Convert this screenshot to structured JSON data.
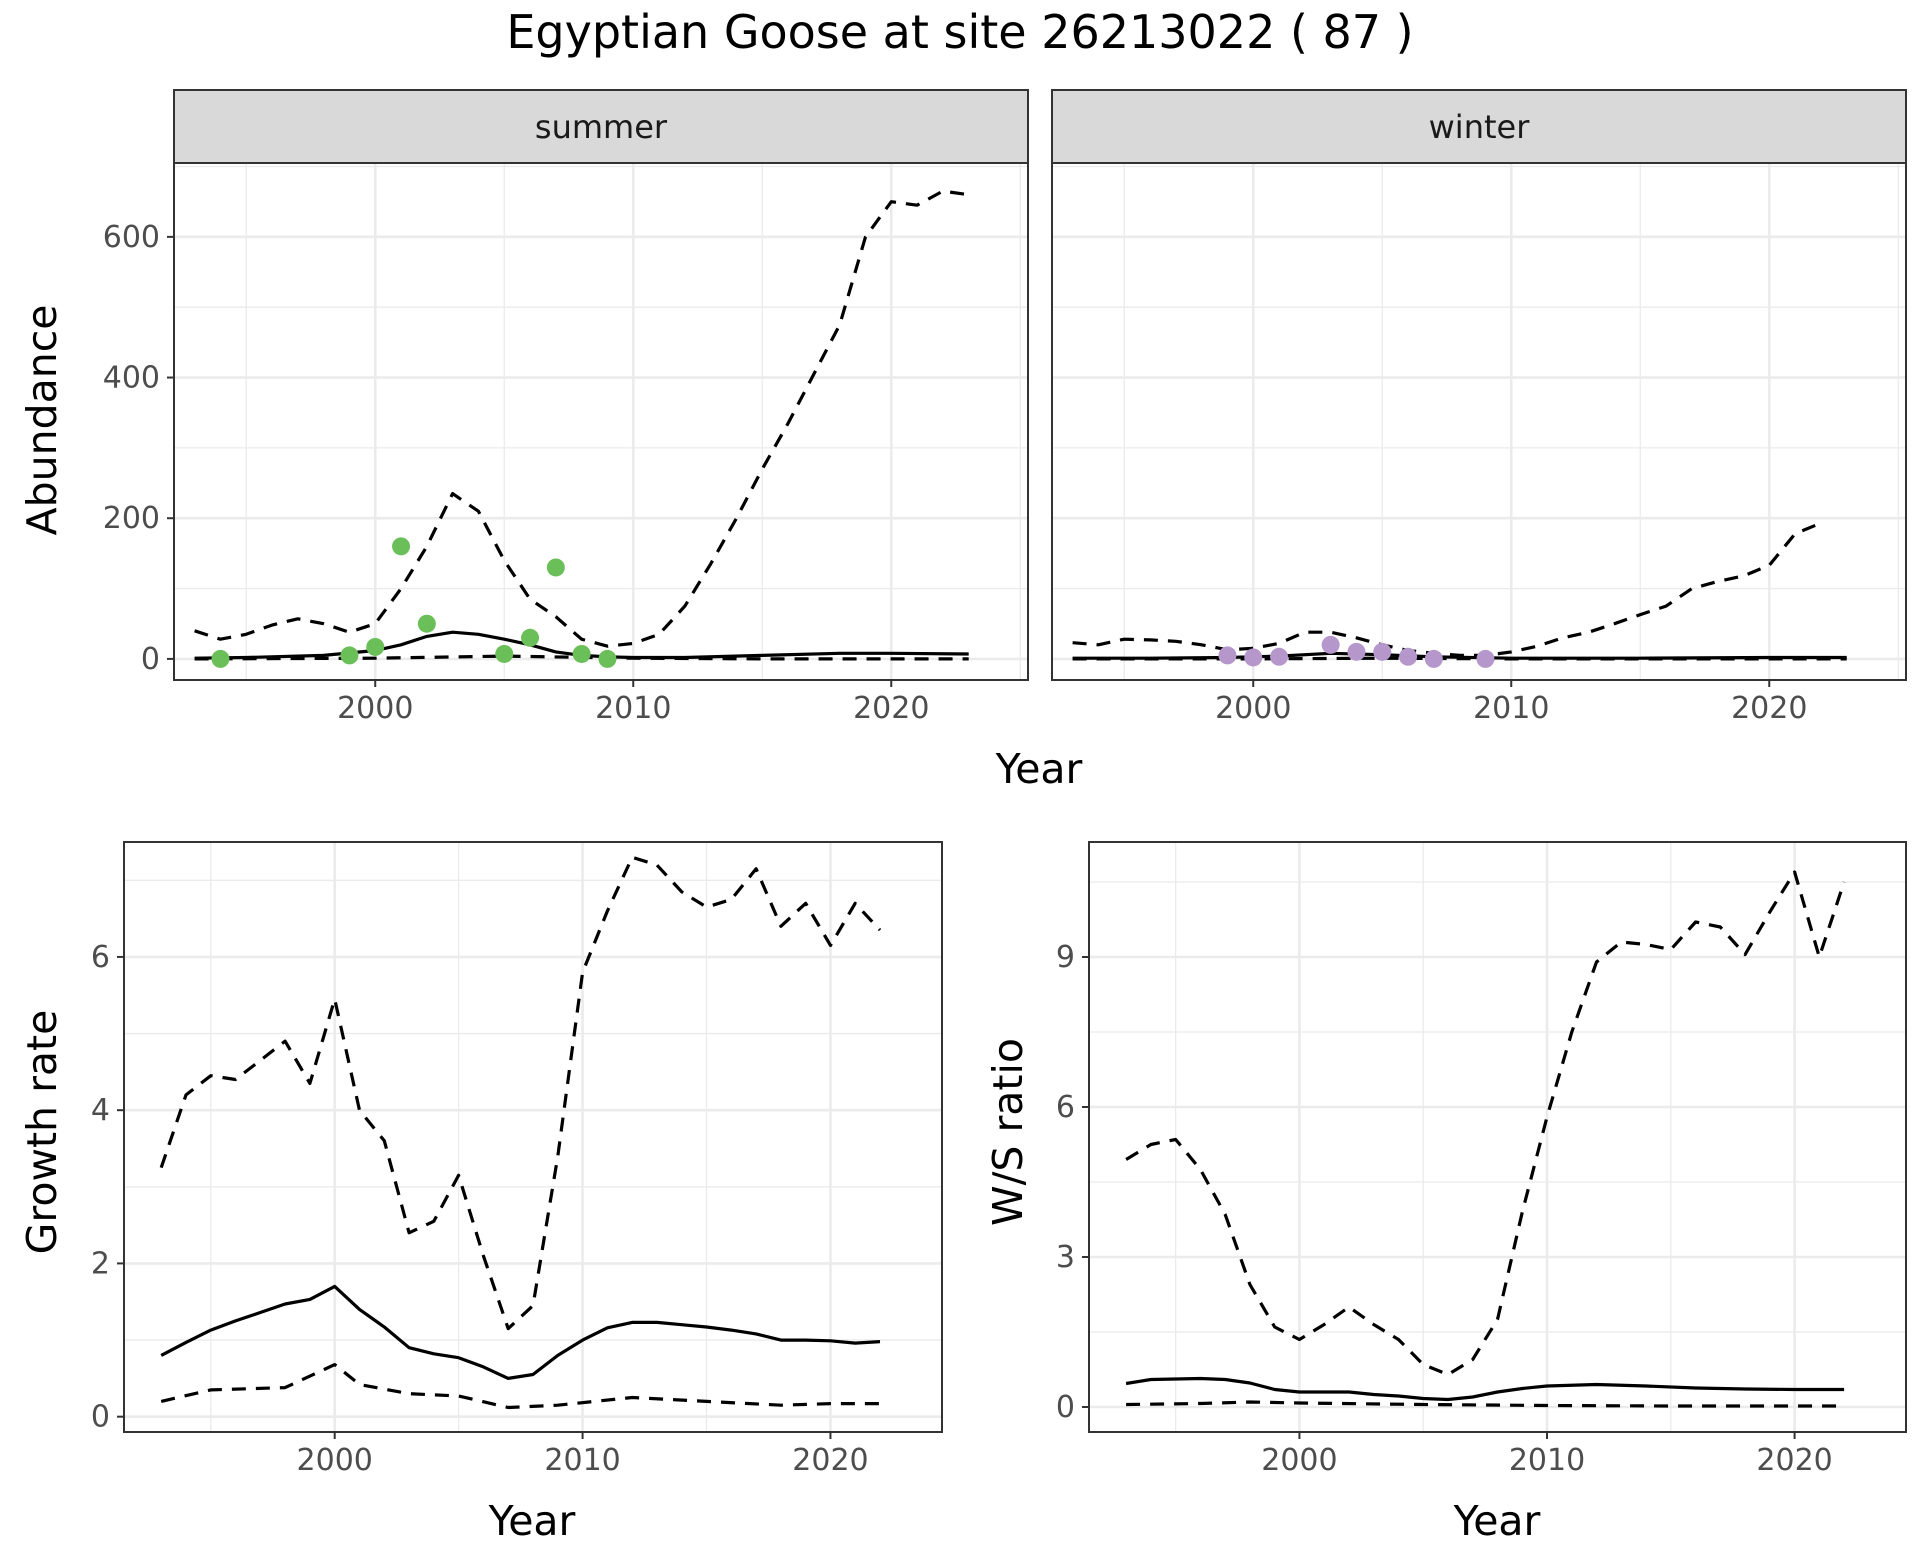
{
  "title": "Egyptian Goose at site 26213022 ( 87 )",
  "chart_data": [
    {
      "id": "abundance",
      "type": "line",
      "xlabel": "Year",
      "ylabel": "Abundance",
      "xlim": [
        1992.2,
        2025.3
      ],
      "ylim": [
        -30,
        705
      ],
      "x_ticks": [
        2000,
        2010,
        2020
      ],
      "y_ticks": [
        0,
        200,
        400,
        600
      ],
      "facets": [
        {
          "label": "summer",
          "point_color": "#6bbf59",
          "points": {
            "x": [
              1994,
              1999,
              2000,
              2001,
              2002,
              2005,
              2006,
              2007,
              2008,
              2009
            ],
            "y": [
              0,
              5,
              17,
              160,
              50,
              7,
              30,
              130,
              7,
              0
            ]
          },
          "series": [
            {
              "kind": "lower",
              "style": "dashed",
              "x": [
                1993,
                2000,
                2005,
                2010,
                2015,
                2020,
                2023
              ],
              "y": [
                0,
                1,
                4,
                1,
                0,
                0,
                0
              ]
            },
            {
              "kind": "estimate",
              "style": "solid",
              "x": [
                1993,
                1995,
                1998,
                2000,
                2001,
                2002,
                2003,
                2004,
                2005,
                2006,
                2007,
                2008,
                2009,
                2010,
                2012,
                2015,
                2018,
                2020,
                2023
              ],
              "y": [
                1,
                2,
                5,
                12,
                20,
                32,
                38,
                35,
                28,
                20,
                10,
                5,
                3,
                2,
                2,
                5,
                8,
                8,
                7
              ]
            },
            {
              "kind": "upper",
              "style": "dashed",
              "x": [
                1993,
                1994,
                1995,
                1996,
                1997,
                1998,
                1999,
                2000,
                2001,
                2002,
                2003,
                2004,
                2005,
                2006,
                2007,
                2008,
                2009,
                2010,
                2011,
                2012,
                2013,
                2014,
                2015,
                2016,
                2017,
                2018,
                2019,
                2020,
                2021,
                2022,
                2023
              ],
              "y": [
                40,
                28,
                35,
                48,
                57,
                50,
                38,
                50,
                100,
                160,
                235,
                210,
                140,
                85,
                60,
                28,
                18,
                22,
                35,
                75,
                135,
                200,
                270,
                335,
                405,
                475,
                600,
                650,
                645,
                665,
                660
              ]
            }
          ]
        },
        {
          "label": "winter",
          "point_color": "#b597cc",
          "points": {
            "x": [
              1999,
              2000,
              2001,
              2003,
              2004,
              2005,
              2006,
              2007,
              2009
            ],
            "y": [
              5,
              2,
              3,
              20,
              10,
              10,
              3,
              0,
              0
            ]
          },
          "series": [
            {
              "kind": "lower",
              "style": "dashed",
              "x": [
                1993,
                2000,
                2005,
                2010,
                2015,
                2020,
                2023
              ],
              "y": [
                0,
                0,
                1,
                0,
                0,
                0,
                0
              ]
            },
            {
              "kind": "estimate",
              "style": "solid",
              "x": [
                1993,
                1996,
                1999,
                2001,
                2003,
                2005,
                2007,
                2010,
                2015,
                2020,
                2023
              ],
              "y": [
                1,
                1,
                2,
                4,
                8,
                6,
                3,
                1,
                1,
                2,
                2
              ]
            },
            {
              "kind": "upper",
              "style": "dashed",
              "x": [
                1993,
                1994,
                1995,
                1996,
                1997,
                1998,
                1999,
                2000,
                2001,
                2002,
                2003,
                2004,
                2005,
                2006,
                2007,
                2008,
                2009,
                2010,
                2011,
                2012,
                2013,
                2014,
                2015,
                2016,
                2017,
                2018,
                2019,
                2020,
                2021,
                2022
              ],
              "y": [
                23,
                20,
                28,
                27,
                25,
                20,
                13,
                15,
                22,
                38,
                38,
                30,
                20,
                12,
                8,
                5,
                5,
                10,
                18,
                30,
                38,
                50,
                63,
                75,
                100,
                110,
                118,
                133,
                178,
                193
              ]
            }
          ]
        }
      ]
    },
    {
      "id": "growth",
      "type": "line",
      "xlabel": "Year",
      "ylabel": "Growth rate",
      "xlim": [
        1991.5,
        2024.5
      ],
      "ylim": [
        -0.2,
        7.5
      ],
      "x_ticks": [
        2000,
        2010,
        2020
      ],
      "y_ticks": [
        0,
        2,
        4,
        6
      ],
      "series": [
        {
          "kind": "upper",
          "style": "dashed",
          "x": [
            1993,
            1994,
            1995,
            1996,
            1997,
            1998,
            1999,
            2000,
            2001,
            2002,
            2003,
            2004,
            2005,
            2006,
            2007,
            2008,
            2009,
            2010,
            2011,
            2012,
            2013,
            2014,
            2015,
            2016,
            2017,
            2018,
            2019,
            2020,
            2021,
            2022
          ],
          "y": [
            3.25,
            4.2,
            4.45,
            4.4,
            4.65,
            4.9,
            4.35,
            5.45,
            4.0,
            3.6,
            2.4,
            2.55,
            3.15,
            2.1,
            1.15,
            1.45,
            3.4,
            5.8,
            6.6,
            7.3,
            7.2,
            6.85,
            6.65,
            6.75,
            7.15,
            6.4,
            6.7,
            6.15,
            6.7,
            6.35
          ]
        },
        {
          "kind": "estimate",
          "style": "solid",
          "x": [
            1993,
            1994,
            1995,
            1996,
            1997,
            1998,
            1999,
            2000,
            2001,
            2002,
            2003,
            2004,
            2005,
            2006,
            2007,
            2008,
            2009,
            2010,
            2011,
            2012,
            2013,
            2014,
            2015,
            2016,
            2017,
            2018,
            2019,
            2020,
            2021,
            2022
          ],
          "y": [
            0.8,
            0.97,
            1.13,
            1.25,
            1.36,
            1.47,
            1.53,
            1.7,
            1.4,
            1.17,
            0.9,
            0.82,
            0.77,
            0.65,
            0.5,
            0.55,
            0.8,
            1.0,
            1.16,
            1.23,
            1.23,
            1.2,
            1.17,
            1.13,
            1.08,
            1.0,
            1.0,
            0.99,
            0.96,
            0.98
          ]
        },
        {
          "kind": "lower",
          "style": "dashed",
          "x": [
            1993,
            1995,
            1998,
            2000,
            2001,
            2003,
            2005,
            2007,
            2009,
            2012,
            2015,
            2018,
            2020,
            2022
          ],
          "y": [
            0.2,
            0.35,
            0.38,
            0.68,
            0.42,
            0.3,
            0.27,
            0.12,
            0.15,
            0.25,
            0.2,
            0.15,
            0.17,
            0.17
          ]
        }
      ]
    },
    {
      "id": "ws_ratio",
      "type": "line",
      "xlabel": "Year",
      "ylabel": "W/S ratio",
      "xlim": [
        1991.5,
        2024.5
      ],
      "ylim": [
        -0.5,
        11.3
      ],
      "x_ticks": [
        2000,
        2010,
        2020
      ],
      "y_ticks": [
        0,
        3,
        6,
        9
      ],
      "series": [
        {
          "kind": "upper",
          "style": "dashed",
          "x": [
            1993,
            1994,
            1995,
            1996,
            1997,
            1998,
            1999,
            2000,
            2001,
            2002,
            2003,
            2004,
            2005,
            2006,
            2007,
            2008,
            2009,
            2010,
            2011,
            2012,
            2013,
            2014,
            2015,
            2016,
            2017,
            2018,
            2019,
            2020,
            2021,
            2022
          ],
          "y": [
            4.95,
            5.25,
            5.35,
            4.75,
            3.85,
            2.45,
            1.6,
            1.35,
            1.65,
            2.0,
            1.65,
            1.35,
            0.85,
            0.65,
            0.95,
            1.75,
            3.9,
            5.8,
            7.5,
            8.9,
            9.3,
            9.25,
            9.15,
            9.7,
            9.6,
            9.05,
            9.9,
            10.7,
            9.0,
            10.5
          ]
        },
        {
          "kind": "estimate",
          "style": "solid",
          "x": [
            1993,
            1994,
            1996,
            1997,
            1998,
            1999,
            2000,
            2002,
            2003,
            2004,
            2005,
            2006,
            2007,
            2008,
            2009,
            2010,
            2012,
            2014,
            2016,
            2018,
            2020,
            2022
          ],
          "y": [
            0.47,
            0.55,
            0.57,
            0.55,
            0.48,
            0.35,
            0.3,
            0.3,
            0.25,
            0.22,
            0.17,
            0.15,
            0.2,
            0.3,
            0.37,
            0.42,
            0.45,
            0.42,
            0.38,
            0.36,
            0.35,
            0.35
          ]
        },
        {
          "kind": "lower",
          "style": "dashed",
          "x": [
            1993,
            1996,
            1998,
            2000,
            2005,
            2010,
            2015,
            2020,
            2022
          ],
          "y": [
            0.05,
            0.07,
            0.1,
            0.08,
            0.05,
            0.03,
            0.02,
            0.02,
            0.02
          ]
        }
      ]
    }
  ]
}
